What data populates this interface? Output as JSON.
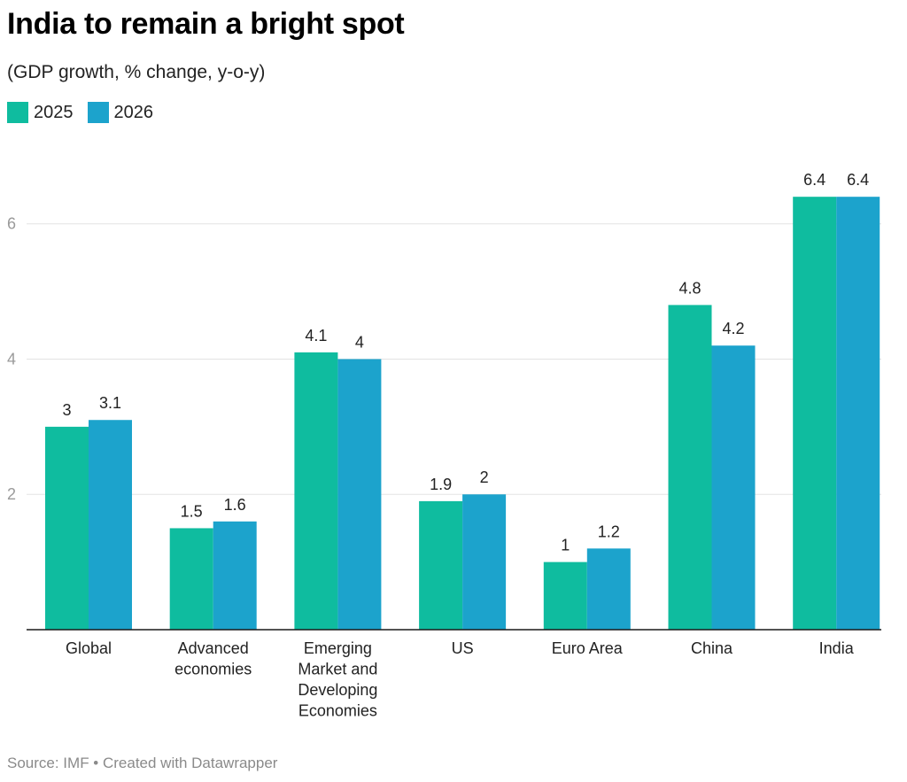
{
  "header": {
    "title": "India to remain a bright spot",
    "subtitle": "(GDP growth, % change, y-o-y)"
  },
  "footer": {
    "source": "Source: IMF • Created with Datawrapper"
  },
  "chart_data": {
    "type": "bar",
    "categories": [
      [
        "Global"
      ],
      [
        "Advanced",
        "economies"
      ],
      [
        "Emerging",
        "Market and",
        "Developing",
        "Economies"
      ],
      [
        "US"
      ],
      [
        "Euro Area"
      ],
      [
        "China"
      ],
      [
        "India"
      ]
    ],
    "series": [
      {
        "name": "2025",
        "color": "#0fbc9f",
        "values": [
          3,
          1.5,
          4.1,
          1.9,
          1,
          4.8,
          6.4
        ]
      },
      {
        "name": "2026",
        "color": "#1ca3cc",
        "values": [
          3.1,
          1.6,
          4,
          2,
          1.2,
          4.2,
          6.4
        ]
      }
    ],
    "yticks": [
      2,
      4,
      6
    ],
    "ylim": [
      0,
      6.9
    ],
    "grid": true,
    "legend_position": "top-left"
  }
}
